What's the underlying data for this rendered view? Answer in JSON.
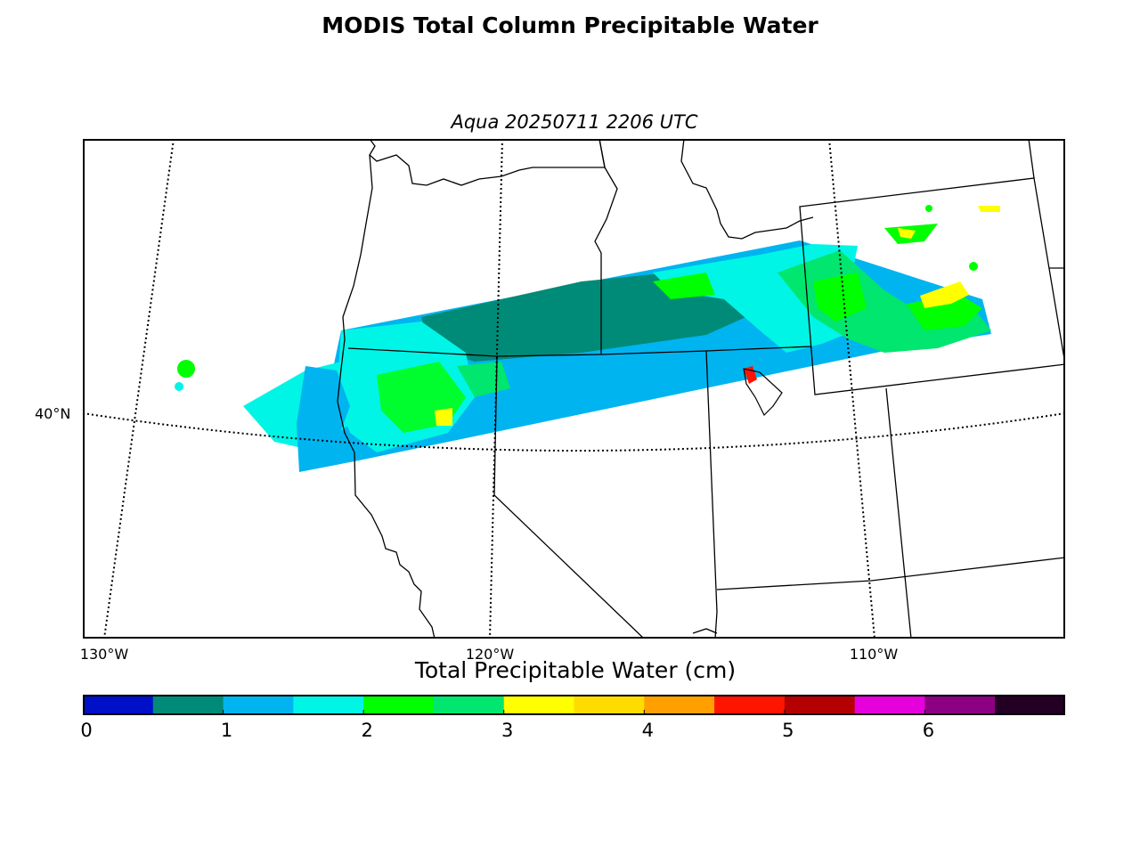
{
  "title": "MODIS Total Column Precipitable Water",
  "subtitle": "Aqua 20250711 2206 UTC",
  "map": {
    "lon_labels": [
      "130°W",
      "120°W",
      "110°W"
    ],
    "lat_labels": [
      "40°N"
    ]
  },
  "colorbar": {
    "title": "Total Precipitable Water (cm)",
    "range": [
      0,
      7
    ],
    "bin_width": 0.5,
    "bins": [
      {
        "from": 0.0,
        "to": 0.5,
        "color": "#0010c8"
      },
      {
        "from": 0.5,
        "to": 1.0,
        "color": "#008b78"
      },
      {
        "from": 1.0,
        "to": 1.5,
        "color": "#00b4f0"
      },
      {
        "from": 1.5,
        "to": 2.0,
        "color": "#00f5e6"
      },
      {
        "from": 2.0,
        "to": 2.5,
        "color": "#00ff00"
      },
      {
        "from": 2.5,
        "to": 3.0,
        "color": "#00e66e"
      },
      {
        "from": 3.0,
        "to": 3.5,
        "color": "#ffff00"
      },
      {
        "from": 3.5,
        "to": 4.0,
        "color": "#ffdc00"
      },
      {
        "from": 4.0,
        "to": 4.5,
        "color": "#ffa000"
      },
      {
        "from": 4.5,
        "to": 5.0,
        "color": "#ff1400"
      },
      {
        "from": 5.0,
        "to": 5.5,
        "color": "#b40000"
      },
      {
        "from": 5.5,
        "to": 6.0,
        "color": "#e600dc"
      },
      {
        "from": 6.0,
        "to": 6.5,
        "color": "#8c0082"
      },
      {
        "from": 6.5,
        "to": 7.0,
        "color": "#230023"
      }
    ],
    "ticks": [
      {
        "value": 0,
        "label": "0"
      },
      {
        "value": 1,
        "label": "1"
      },
      {
        "value": 2,
        "label": "2"
      },
      {
        "value": 3,
        "label": "3"
      },
      {
        "value": 4,
        "label": "4"
      },
      {
        "value": 5,
        "label": "5"
      },
      {
        "value": 6,
        "label": "6"
      }
    ]
  }
}
